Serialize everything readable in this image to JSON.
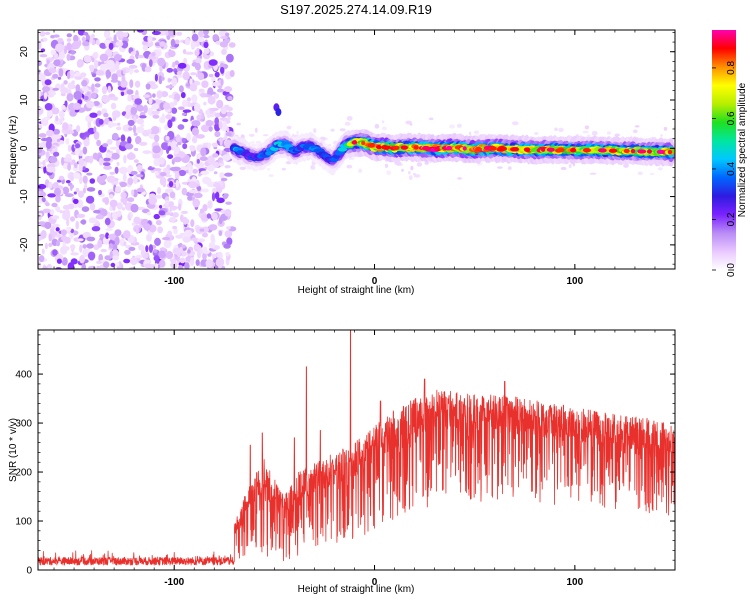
{
  "title": "S197.2025.274.14.09.R19",
  "chart_data": [
    {
      "type": "heatmap",
      "name": "spectrogram",
      "xlabel": "Height of straight line (km)",
      "ylabel": "Frequency (Hz)",
      "xlim": [
        -168,
        150
      ],
      "ylim": [
        -25,
        24.5
      ],
      "x_ticks": [
        {
          "value": -100,
          "label": "-100"
        },
        {
          "value": 0,
          "label": "0"
        },
        {
          "value": 100,
          "label": "100"
        }
      ],
      "y_ticks": [
        {
          "value": 20,
          "label": "20"
        },
        {
          "value": 10,
          "label": "10"
        },
        {
          "value": 0,
          "label": "0"
        },
        {
          "value": -10,
          "label": "-10"
        },
        {
          "value": -20,
          "label": "-20"
        }
      ],
      "noise_region_x": [
        -168,
        -71
      ],
      "ridge": [
        {
          "x": -70,
          "f": 0.0,
          "a": 0.4
        },
        {
          "x": -66,
          "f": -0.8,
          "a": 0.35
        },
        {
          "x": -62,
          "f": -1.6,
          "a": 0.3
        },
        {
          "x": -58,
          "f": -1.8,
          "a": 0.3
        },
        {
          "x": -55,
          "f": -1.4,
          "a": 0.35
        },
        {
          "x": -52,
          "f": -0.5,
          "a": 0.4
        },
        {
          "x": -48,
          "f": 0.8,
          "a": 0.4
        },
        {
          "x": -44,
          "f": 0.7,
          "a": 0.4
        },
        {
          "x": -40,
          "f": -0.6,
          "a": 0.35
        },
        {
          "x": -36,
          "f": 0.3,
          "a": 0.35
        },
        {
          "x": -32,
          "f": 0.4,
          "a": 0.4
        },
        {
          "x": -28,
          "f": -0.5,
          "a": 0.35
        },
        {
          "x": -24,
          "f": -1.8,
          "a": 0.3
        },
        {
          "x": -21,
          "f": -2.6,
          "a": 0.3
        },
        {
          "x": -18,
          "f": -1.2,
          "a": 0.35
        },
        {
          "x": -14,
          "f": 0.8,
          "a": 0.5
        },
        {
          "x": -10,
          "f": 1.2,
          "a": 0.7
        },
        {
          "x": -5,
          "f": 1.1,
          "a": 0.8
        },
        {
          "x": 0,
          "f": 0.3,
          "a": 0.85
        },
        {
          "x": 10,
          "f": 0.1,
          "a": 0.8
        },
        {
          "x": 20,
          "f": 0.2,
          "a": 0.75
        },
        {
          "x": 30,
          "f": -0.1,
          "a": 0.85
        },
        {
          "x": 40,
          "f": 0.1,
          "a": 0.8
        },
        {
          "x": 50,
          "f": -0.2,
          "a": 0.85
        },
        {
          "x": 60,
          "f": 0.0,
          "a": 0.8
        },
        {
          "x": 70,
          "f": -0.2,
          "a": 0.75
        },
        {
          "x": 80,
          "f": -0.3,
          "a": 0.8
        },
        {
          "x": 90,
          "f": -0.3,
          "a": 0.75
        },
        {
          "x": 100,
          "f": -0.4,
          "a": 0.7
        },
        {
          "x": 110,
          "f": -0.4,
          "a": 0.75
        },
        {
          "x": 120,
          "f": -0.5,
          "a": 0.7
        },
        {
          "x": 130,
          "f": -0.6,
          "a": 0.7
        },
        {
          "x": 140,
          "f": -0.7,
          "a": 0.65
        },
        {
          "x": 148,
          "f": -0.8,
          "a": 0.8
        }
      ],
      "isolated_blobs": [
        {
          "x": -49,
          "f": 8.5,
          "a": 0.25
        },
        {
          "x": -48,
          "f": 7.5,
          "a": 0.3
        }
      ],
      "colorbar": {
        "label": "Normalized spectral amplitude",
        "range": [
          0,
          0.95
        ],
        "ticks": [
          {
            "value": 0.0,
            "label": "0.0"
          },
          {
            "value": 0.2,
            "label": "0.2"
          },
          {
            "value": 0.4,
            "label": "0.4"
          },
          {
            "value": 0.6,
            "label": "0.6"
          },
          {
            "value": 0.8,
            "label": "0.8"
          }
        ],
        "colors": [
          "#ffffff",
          "#e9c8ff",
          "#b98cf5",
          "#7a22ff",
          "#2f1be0",
          "#0066ff",
          "#00c8ff",
          "#00e6a0",
          "#20e020",
          "#b8ee00",
          "#ffff00",
          "#ff9000",
          "#ff0000",
          "#ff00b0"
        ]
      }
    },
    {
      "type": "line",
      "name": "snr",
      "color": "#e8302c",
      "xlabel": "Height of straight line (km)",
      "ylabel": "SNR (10 * v/v)",
      "xlim": [
        -168,
        150
      ],
      "ylim": [
        0,
        490
      ],
      "x_ticks": [
        {
          "value": -100,
          "label": "-100"
        },
        {
          "value": 0,
          "label": "0"
        },
        {
          "value": 100,
          "label": "100"
        }
      ],
      "y_ticks": [
        {
          "value": 400,
          "label": "400"
        },
        {
          "value": 300,
          "label": "300"
        },
        {
          "value": 200,
          "label": "200"
        },
        {
          "value": 100,
          "label": "100"
        },
        {
          "value": 0,
          "label": "0"
        }
      ],
      "envelope": [
        {
          "x": -168,
          "lo": 8,
          "hi": 40
        },
        {
          "x": -130,
          "lo": 8,
          "hi": 38
        },
        {
          "x": -75,
          "lo": 10,
          "hi": 42
        },
        {
          "x": -64,
          "lo": 30,
          "hi": 160
        },
        {
          "x": -55,
          "lo": 20,
          "hi": 230
        },
        {
          "x": -45,
          "lo": 5,
          "hi": 150
        },
        {
          "x": -38,
          "lo": 30,
          "hi": 200
        },
        {
          "x": -25,
          "lo": 50,
          "hi": 230
        },
        {
          "x": -10,
          "lo": 60,
          "hi": 260
        },
        {
          "x": 0,
          "lo": 80,
          "hi": 300
        },
        {
          "x": 15,
          "lo": 110,
          "hi": 340
        },
        {
          "x": 30,
          "lo": 130,
          "hi": 370
        },
        {
          "x": 50,
          "lo": 140,
          "hi": 360
        },
        {
          "x": 70,
          "lo": 140,
          "hi": 355
        },
        {
          "x": 90,
          "lo": 130,
          "hi": 340
        },
        {
          "x": 110,
          "lo": 130,
          "hi": 325
        },
        {
          "x": 130,
          "lo": 120,
          "hi": 315
        },
        {
          "x": 150,
          "lo": 110,
          "hi": 300
        }
      ],
      "spikes": [
        {
          "x": -62,
          "y": 255
        },
        {
          "x": -56,
          "y": 280
        },
        {
          "x": -40,
          "y": 270
        },
        {
          "x": -34,
          "y": 415
        },
        {
          "x": -27,
          "y": 285
        },
        {
          "x": -12,
          "y": 490
        },
        {
          "x": 3,
          "y": 345
        },
        {
          "x": 25,
          "y": 390
        },
        {
          "x": 65,
          "y": 385
        }
      ]
    }
  ]
}
